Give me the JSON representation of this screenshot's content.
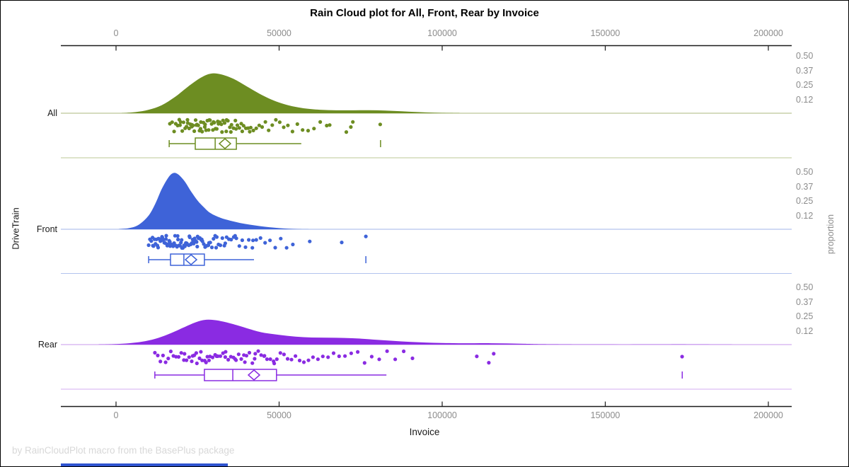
{
  "title": "Rain Cloud plot for All, Front, Rear by Invoice",
  "footer": "by RainCloudPlot macro from the BasePlus package",
  "bottom_bar_color": "#2f54d0",
  "styles": {
    "axis_line_color": "#1a1a1a",
    "tick_label_color": "#8c8c8c",
    "title_color": "#000000",
    "axis_title_color": "#1a1a1a",
    "footer_color": "#d8d8d8",
    "background": "#ffffff"
  },
  "chart_data": {
    "type": "raincloud",
    "title": "Rain Cloud plot for All, Front, Rear by Invoice",
    "xlabel": "Invoice",
    "ylabel_left": "DriveTrain",
    "ylabel_right": "proportion",
    "x_axis": {
      "min": 0,
      "max": 200000,
      "ticks": [
        {
          "value": 0,
          "label": "0"
        },
        {
          "value": 50000,
          "label": "50000"
        },
        {
          "value": 100000,
          "label": "100000"
        },
        {
          "value": 150000,
          "label": "150000"
        },
        {
          "value": 200000,
          "label": "200000"
        }
      ]
    },
    "proportion_ticks": [
      {
        "value": 0.5,
        "label": "0.50"
      },
      {
        "value": 0.37,
        "label": "0.37"
      },
      {
        "value": 0.25,
        "label": "0.25"
      },
      {
        "value": 0.12,
        "label": "0.12"
      }
    ],
    "groups": [
      {
        "name": "All",
        "color": "#6d8d22",
        "light_color": "#bcc897",
        "density": [
          [
            2000,
            0.001
          ],
          [
            6000,
            0.01
          ],
          [
            10000,
            0.03
          ],
          [
            14000,
            0.07
          ],
          [
            18000,
            0.14
          ],
          [
            22000,
            0.23
          ],
          [
            26000,
            0.31
          ],
          [
            29000,
            0.345
          ],
          [
            32000,
            0.34
          ],
          [
            36000,
            0.3
          ],
          [
            40000,
            0.235
          ],
          [
            44000,
            0.17
          ],
          [
            48000,
            0.115
          ],
          [
            52000,
            0.075
          ],
          [
            56000,
            0.05
          ],
          [
            60000,
            0.035
          ],
          [
            65000,
            0.027
          ],
          [
            70000,
            0.025
          ],
          [
            75000,
            0.026
          ],
          [
            80000,
            0.025
          ],
          [
            85000,
            0.02
          ],
          [
            90000,
            0.013
          ],
          [
            95000,
            0.007
          ],
          [
            100000,
            0.003
          ],
          [
            105000,
            0.001
          ]
        ],
        "box": {
          "whisker_low": 16300,
          "q1": 24300,
          "median": 30400,
          "mean": 33400,
          "q3": 36900,
          "whisker_high": 56800,
          "outliers": [
            81100
          ]
        },
        "points": [
          16500,
          17200,
          17800,
          18300,
          18900,
          19400,
          19600,
          19800,
          20300,
          20700,
          21200,
          21600,
          21900,
          22000,
          22400,
          22800,
          23200,
          23300,
          23600,
          24000,
          24400,
          24600,
          24800,
          25200,
          25600,
          25900,
          26000,
          26400,
          26800,
          27200,
          27300,
          27600,
          28000,
          28400,
          28600,
          28800,
          29300,
          29700,
          29900,
          30100,
          30500,
          30900,
          31200,
          31400,
          31800,
          32300,
          32500,
          32800,
          33300,
          33800,
          33900,
          34300,
          34900,
          35200,
          35400,
          36000,
          36600,
          36800,
          37200,
          37800,
          38400,
          38700,
          39100,
          39800,
          40500,
          41000,
          41300,
          42100,
          43000,
          43900,
          44800,
          45800,
          46800,
          47900,
          49000,
          50200,
          51400,
          52700,
          54100,
          55600,
          57200,
          58900,
          60700,
          62600,
          64600,
          65500,
          70600,
          72000,
          72600,
          81000
        ]
      },
      {
        "name": "Front",
        "color": "#3e63d8",
        "light_color": "#b3c3ee",
        "density": [
          [
            1000,
            0.002
          ],
          [
            4000,
            0.01
          ],
          [
            7000,
            0.04
          ],
          [
            10000,
            0.12
          ],
          [
            12000,
            0.22
          ],
          [
            14000,
            0.35
          ],
          [
            16000,
            0.45
          ],
          [
            17500,
            0.49
          ],
          [
            19000,
            0.48
          ],
          [
            21000,
            0.42
          ],
          [
            23000,
            0.33
          ],
          [
            25000,
            0.25
          ],
          [
            27000,
            0.19
          ],
          [
            29000,
            0.14
          ],
          [
            32000,
            0.1
          ],
          [
            35000,
            0.075
          ],
          [
            38000,
            0.055
          ],
          [
            41000,
            0.04
          ],
          [
            44000,
            0.028
          ],
          [
            47000,
            0.018
          ],
          [
            50000,
            0.01
          ],
          [
            53000,
            0.005
          ],
          [
            56000,
            0.002
          ],
          [
            60000,
            0.0
          ]
        ],
        "box": {
          "whisker_low": 10000,
          "q1": 16700,
          "median": 20800,
          "mean": 23000,
          "q3": 27100,
          "whisker_high": 42300,
          "outliers": [
            76600
          ]
        },
        "points": [
          10000,
          10400,
          10800,
          11200,
          11300,
          11500,
          11800,
          12100,
          12400,
          12700,
          12900,
          13000,
          13300,
          13600,
          13900,
          14100,
          14200,
          14500,
          14800,
          15100,
          15300,
          15400,
          15700,
          16000,
          16300,
          16500,
          16600,
          16900,
          17200,
          17500,
          17700,
          17800,
          18100,
          18400,
          18700,
          18900,
          19000,
          19300,
          19600,
          19900,
          20100,
          20200,
          20500,
          20800,
          21100,
          21300,
          21400,
          21700,
          22000,
          22300,
          22500,
          22600,
          22900,
          23200,
          23500,
          23700,
          23800,
          24100,
          24400,
          24700,
          24900,
          25000,
          25300,
          25700,
          26100,
          26300,
          26500,
          26900,
          27300,
          27700,
          28100,
          28300,
          28500,
          28900,
          29400,
          29900,
          30400,
          30700,
          30900,
          31400,
          32000,
          32600,
          33200,
          33500,
          33900,
          34600,
          35300,
          36100,
          36500,
          36900,
          37800,
          38700,
          39700,
          40700,
          41800,
          42000,
          43000,
          44300,
          45700,
          47200,
          48800,
          50500,
          52300,
          54200,
          59400,
          69200,
          76600
        ]
      },
      {
        "name": "Rear",
        "color": "#8a2be2",
        "light_color": "#d3adf0",
        "density": [
          [
            -5000,
            0.001
          ],
          [
            0,
            0.005
          ],
          [
            4000,
            0.012
          ],
          [
            8000,
            0.025
          ],
          [
            12000,
            0.05
          ],
          [
            16000,
            0.09
          ],
          [
            20000,
            0.14
          ],
          [
            24000,
            0.19
          ],
          [
            27000,
            0.215
          ],
          [
            30000,
            0.215
          ],
          [
            33000,
            0.2
          ],
          [
            37000,
            0.17
          ],
          [
            41000,
            0.135
          ],
          [
            45000,
            0.105
          ],
          [
            50000,
            0.085
          ],
          [
            55000,
            0.07
          ],
          [
            60000,
            0.062
          ],
          [
            65000,
            0.06
          ],
          [
            70000,
            0.058
          ],
          [
            75000,
            0.052
          ],
          [
            80000,
            0.042
          ],
          [
            85000,
            0.032
          ],
          [
            90000,
            0.024
          ],
          [
            95000,
            0.018
          ],
          [
            100000,
            0.014
          ],
          [
            105000,
            0.012
          ],
          [
            110000,
            0.012
          ],
          [
            115000,
            0.012
          ],
          [
            120000,
            0.01
          ],
          [
            125000,
            0.007
          ],
          [
            130000,
            0.004
          ],
          [
            140000,
            0.002
          ],
          [
            150000,
            0.001
          ],
          [
            160000,
            0.001
          ],
          [
            170000,
            0.002
          ],
          [
            175000,
            0.002
          ],
          [
            180000,
            0.001
          ],
          [
            190000,
            0.0
          ]
        ],
        "box": {
          "whisker_low": 11900,
          "q1": 27100,
          "median": 35800,
          "mean": 42300,
          "q3": 49200,
          "whisker_high": 82900,
          "outliers": [
            173600
          ]
        },
        "points": [
          11900,
          12800,
          13600,
          14400,
          15200,
          16000,
          16800,
          17600,
          18400,
          19200,
          20000,
          20800,
          21000,
          21600,
          22400,
          23200,
          23500,
          24000,
          24600,
          24800,
          25600,
          26000,
          26400,
          27200,
          27600,
          28000,
          28500,
          28800,
          29600,
          30400,
          30800,
          31000,
          31200,
          32000,
          32800,
          33500,
          33600,
          34400,
          35200,
          36000,
          36500,
          36800,
          37600,
          38400,
          39200,
          39500,
          40000,
          40900,
          41800,
          42500,
          42700,
          43600,
          44500,
          45400,
          45500,
          46300,
          47300,
          48300,
          48500,
          49300,
          50400,
          51500,
          52600,
          53800,
          55000,
          56300,
          57600,
          59000,
          60400,
          61900,
          63400,
          65000,
          66700,
          68400,
          70200,
          72100,
          74100,
          76200,
          78400,
          80700,
          83100,
          85600,
          88200,
          90900,
          110600,
          114300,
          115800,
          173560
        ]
      }
    ]
  }
}
